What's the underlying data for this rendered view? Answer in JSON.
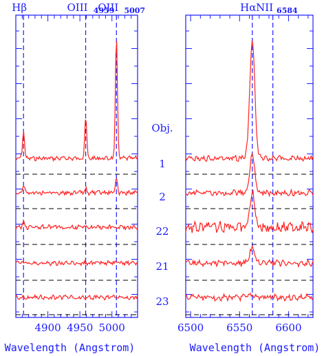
{
  "chart_data": [
    {
      "type": "line",
      "xlabel": "Wavelength (Angstrom)",
      "xlim": [
        4850,
        5040
      ],
      "xticks": [
        4900,
        4950,
        5000
      ],
      "line_markers": [
        {
          "label": "H",
          "greek": "β",
          "sub": "",
          "x": 4862
        },
        {
          "label": "OIII",
          "greek": "",
          "sub": "4959",
          "x": 4959
        },
        {
          "label": "OIII",
          "greek": "",
          "sub": "5007",
          "x": 5007
        }
      ],
      "series": [
        {
          "obj": "1",
          "lines": [
            {
              "x": 4862,
              "amp": 42
            },
            {
              "x": 4959,
              "amp": 62
            },
            {
              "x": 5007,
              "amp": 185
            }
          ]
        },
        {
          "obj": "2",
          "lines": [
            {
              "x": 4862,
              "amp": 12
            },
            {
              "x": 4959,
              "amp": 6
            },
            {
              "x": 5007,
              "amp": 22
            }
          ]
        },
        {
          "obj": "22",
          "lines": [
            {
              "x": 4862,
              "amp": 8
            }
          ]
        },
        {
          "obj": "21",
          "lines": []
        },
        {
          "obj": "23",
          "lines": []
        }
      ]
    },
    {
      "type": "line",
      "xlabel": "Wavelength (Angstrom)",
      "xlim": [
        6495,
        6625
      ],
      "xticks": [
        6500,
        6550,
        6600
      ],
      "line_markers": [
        {
          "label": "H",
          "greek": "α",
          "sub": "",
          "x": 6563
        },
        {
          "label": "NII",
          "greek": "",
          "sub": "6584",
          "x": 6584
        }
      ],
      "series": [
        {
          "obj": "1",
          "lines": [
            {
              "x": 6563,
              "amp": 178
            }
          ]
        },
        {
          "obj": "2",
          "lines": [
            {
              "x": 6563,
              "amp": 58
            }
          ]
        },
        {
          "obj": "22",
          "lines": [
            {
              "x": 6563,
              "amp": 52
            }
          ]
        },
        {
          "obj": "21",
          "lines": [
            {
              "x": 6563,
              "amp": 22
            }
          ]
        },
        {
          "obj": "23",
          "lines": [
            {
              "x": 6563,
              "amp": 4
            }
          ]
        }
      ]
    }
  ],
  "column_header": "Obj.",
  "colors": {
    "axis": "#1a1aff",
    "spectrum": "#ff2020",
    "baseline": "#000000",
    "marker": "#1a1aff"
  }
}
